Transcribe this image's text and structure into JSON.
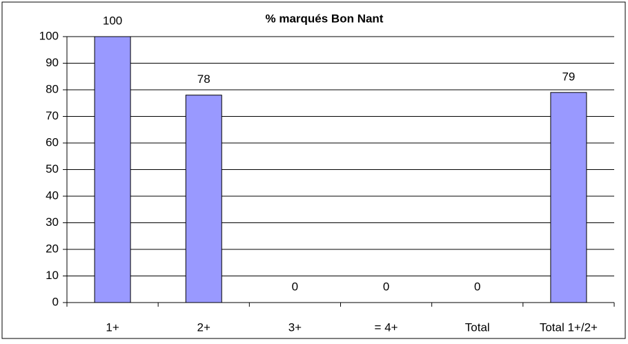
{
  "chart_data": {
    "type": "bar",
    "title": "% marqués Bon Nant",
    "categories": [
      "1+",
      "2+",
      "3+",
      "= 4+",
      "Total",
      "Total 1+/2+"
    ],
    "values": [
      100,
      78,
      0,
      0,
      0,
      79
    ],
    "color": "#9999ff",
    "ylim": [
      0,
      100
    ],
    "yticks": [
      0,
      10,
      20,
      30,
      40,
      50,
      60,
      70,
      80,
      90,
      100
    ],
    "grid": true
  }
}
